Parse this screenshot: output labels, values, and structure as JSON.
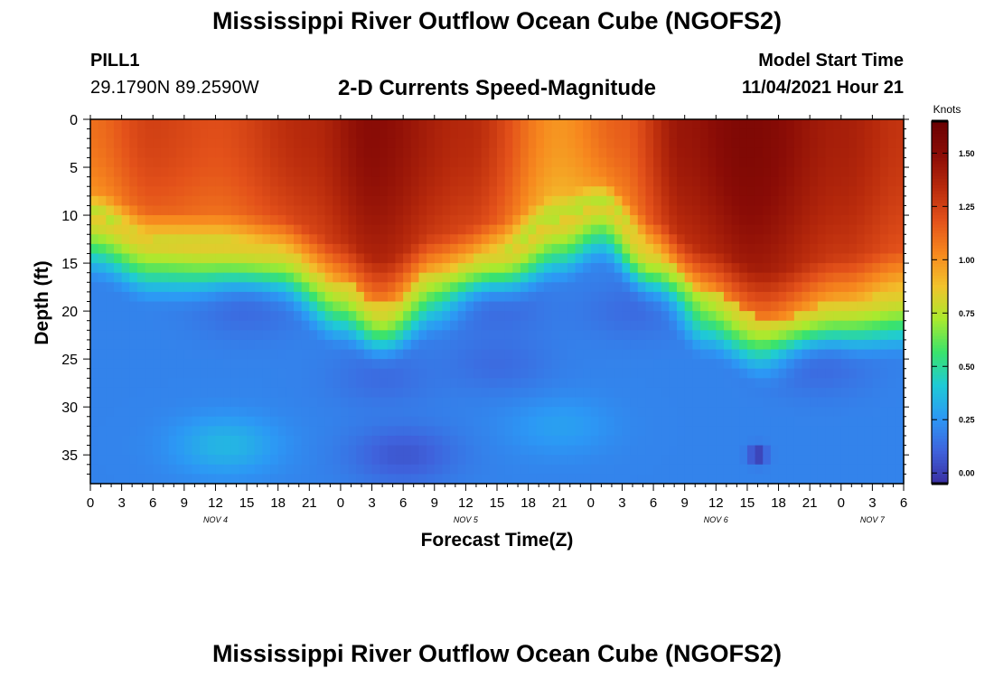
{
  "header": {
    "title": "Mississippi River Outflow Ocean Cube (NGOFS2)",
    "station_id": "PILL1",
    "station_coords": "29.1790N  89.2590W",
    "subtitle": "2-D Currents Speed-Magnitude",
    "model_start_label": "Model Start Time",
    "model_start_value": "11/04/2021 Hour 21"
  },
  "footer": {
    "title": "Mississippi River Outflow Ocean Cube (NGOFS2)"
  },
  "chart_data": {
    "type": "heatmap",
    "title": "2-D Currents Speed-Magnitude",
    "xlabel": "Forecast Time(Z)",
    "ylabel": "Depth (ft)",
    "x_ticks": [
      "0",
      "3",
      "6",
      "9",
      "12",
      "15",
      "18",
      "21",
      "0",
      "3",
      "6",
      "9",
      "12",
      "15",
      "18",
      "21",
      "0",
      "3",
      "6",
      "9",
      "12",
      "15",
      "18",
      "21",
      "0",
      "3",
      "6"
    ],
    "date_labels": [
      {
        "label": "NOV 4",
        "at_tick": 4
      },
      {
        "label": "NOV 5",
        "at_tick": 12
      },
      {
        "label": "NOV 6",
        "at_tick": 20
      },
      {
        "label": "NOV 7",
        "at_tick": 25
      }
    ],
    "y_ticks": [
      0,
      5,
      10,
      15,
      20,
      25,
      30,
      35
    ],
    "ylim": [
      0,
      38
    ],
    "xlim_hours": [
      0,
      78
    ],
    "colorbar": {
      "unit": "Knots",
      "min": -0.05,
      "max": 1.65,
      "ticks": [
        "0.00",
        "0.25",
        "0.50",
        "0.75",
        "1.00",
        "1.25",
        "1.50"
      ],
      "colors": [
        "#3a2ea0",
        "#3f62dc",
        "#2c98f5",
        "#1fcad6",
        "#3ae36c",
        "#a9ea2e",
        "#f2c32c",
        "#f7881e",
        "#e3511a",
        "#b82a0c",
        "#8a0c06",
        "#6a0202"
      ]
    },
    "surface_speed_by_hour": [
      {
        "hour": 0,
        "speed": 1.1
      },
      {
        "hour": 6,
        "speed": 1.25
      },
      {
        "hour": 12,
        "speed": 1.2
      },
      {
        "hour": 21,
        "speed": 1.35
      },
      {
        "hour": 27,
        "speed": 1.5
      },
      {
        "hour": 36,
        "speed": 1.35
      },
      {
        "hour": 45,
        "speed": 1.0
      },
      {
        "hour": 51,
        "speed": 1.15
      },
      {
        "hour": 57,
        "speed": 1.45
      },
      {
        "hour": 63,
        "speed": 1.55
      },
      {
        "hour": 72,
        "speed": 1.4
      },
      {
        "hour": 78,
        "speed": 1.3
      }
    ],
    "jet_depth_ft_by_hour": [
      {
        "hour": 0,
        "depth": 10
      },
      {
        "hour": 6,
        "depth": 12.5
      },
      {
        "hour": 12,
        "depth": 13
      },
      {
        "hour": 18,
        "depth": 13.5
      },
      {
        "hour": 24,
        "depth": 17
      },
      {
        "hour": 28,
        "depth": 19.5
      },
      {
        "hour": 33,
        "depth": 16
      },
      {
        "hour": 39,
        "depth": 14
      },
      {
        "hour": 45,
        "depth": 10.5
      },
      {
        "hour": 49,
        "depth": 8.5
      },
      {
        "hour": 54,
        "depth": 14
      },
      {
        "hour": 59,
        "depth": 18
      },
      {
        "hour": 65,
        "depth": 21
      },
      {
        "hour": 72,
        "depth": 19
      },
      {
        "hour": 78,
        "depth": 18
      }
    ],
    "deep_features": [
      {
        "hour": 13,
        "depth": 34,
        "speed": 0.38
      },
      {
        "hour": 45,
        "depth": 32,
        "speed": 0.3
      },
      {
        "hour": 30,
        "depth": 35,
        "speed": 0.05
      },
      {
        "hour": 15,
        "depth": 20,
        "speed": 0.12
      },
      {
        "hour": 39,
        "depth": 20,
        "speed": 0.12
      },
      {
        "hour": 52,
        "depth": 20,
        "speed": 0.12
      },
      {
        "hour": 28,
        "depth": 27,
        "speed": 0.12
      },
      {
        "hour": 39,
        "depth": 25.5,
        "speed": 0.12
      },
      {
        "hour": 70,
        "depth": 26,
        "speed": 0.12
      }
    ],
    "min_patch": {
      "hour": 64,
      "depth": 35,
      "speed": -0.05
    },
    "background_deep_speed": 0.2
  }
}
